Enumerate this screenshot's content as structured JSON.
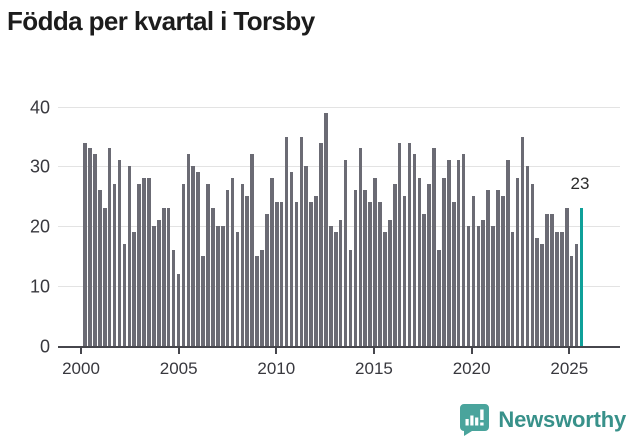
{
  "title": "Födda per kvartal i Torsby",
  "chart_data": {
    "type": "bar",
    "title": "Födda per kvartal i Torsby",
    "frequency": "quarterly",
    "start_period": "2000 Q1",
    "end_period": "2025 Q2",
    "categories_years": [
      2000,
      2001,
      2002,
      2003,
      2004,
      2005,
      2006,
      2007,
      2008,
      2009,
      2010,
      2011,
      2012,
      2013,
      2014,
      2015,
      2016,
      2017,
      2018,
      2019,
      2020,
      2021,
      2022,
      2023,
      2024,
      2025
    ],
    "values": [
      34,
      33,
      32,
      26,
      23,
      33,
      27,
      31,
      17,
      30,
      19,
      27,
      28,
      28,
      20,
      21,
      23,
      23,
      16,
      12,
      27,
      32,
      30,
      29,
      15,
      27,
      23,
      20,
      20,
      26,
      28,
      19,
      27,
      25,
      32,
      15,
      16,
      22,
      28,
      24,
      24,
      35,
      29,
      24,
      35,
      30,
      24,
      25,
      34,
      39,
      20,
      19,
      21,
      31,
      16,
      26,
      33,
      26,
      24,
      28,
      24,
      19,
      21,
      27,
      34,
      25,
      34,
      32,
      28,
      22,
      27,
      33,
      16,
      28,
      31,
      24,
      31,
      32,
      20,
      25,
      20,
      21,
      26,
      20,
      26,
      25,
      31,
      19,
      28,
      35,
      30,
      27,
      18,
      17,
      22,
      22,
      19,
      19,
      23,
      15,
      17,
      23
    ],
    "highlight_last_bar": true,
    "annotation": {
      "text": "23",
      "target": "last-bar"
    },
    "x_tick_labels": [
      "2000",
      "2005",
      "2010",
      "2015",
      "2020",
      "2025"
    ],
    "y_tick_labels": [
      "0",
      "10",
      "20",
      "30",
      "40"
    ],
    "ylim": [
      0,
      40
    ],
    "grid": true,
    "colors": {
      "bar": "#6b6b74",
      "highlight": "#0fa099",
      "gridline": "#e3e3e3",
      "axis": "#46464c"
    }
  },
  "footer": {
    "brand": "Newsworthy",
    "logo": "bar-chart-speech-bubble-icon",
    "brand_color": "#38918a",
    "icon_color": "#4aa49c"
  }
}
